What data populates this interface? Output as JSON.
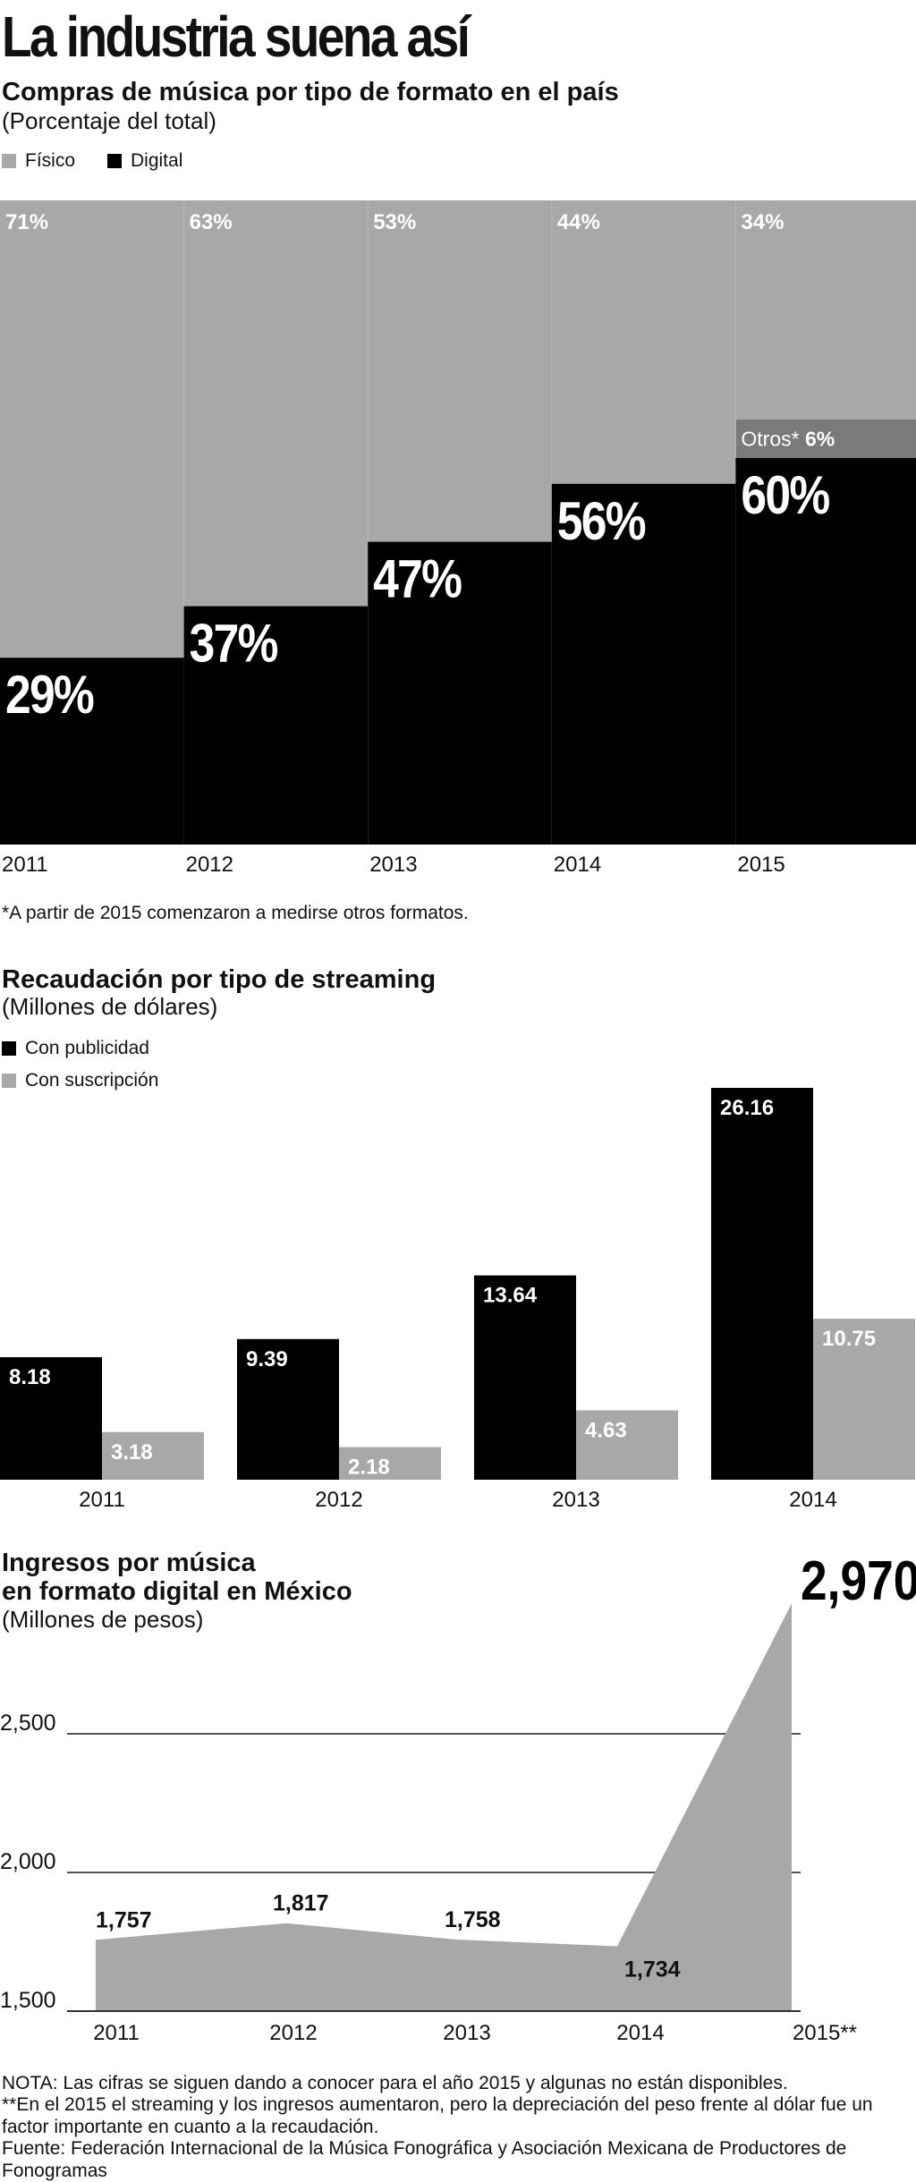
{
  "header": {
    "title": "La industria suena así"
  },
  "chart_data": [
    {
      "type": "bar",
      "stacked": true,
      "title": "Compras de música por tipo de formato en el país",
      "subtitle": "(Porcentaje del total)",
      "unit": "%",
      "categories": [
        "2011",
        "2012",
        "2013",
        "2014",
        "2015"
      ],
      "series": [
        {
          "name": "Físico",
          "color": "#a8a8a8",
          "values": [
            71,
            63,
            53,
            44,
            34
          ],
          "labels": [
            "71%",
            "63%",
            "53%",
            "44%",
            "34%"
          ]
        },
        {
          "name": "Digital",
          "color": "#000000",
          "values": [
            29,
            37,
            47,
            56,
            60
          ],
          "labels": [
            "29%",
            "37%",
            "47%",
            "56%",
            "60%"
          ]
        },
        {
          "name": "Otros*",
          "color": "#7a7a7a",
          "values": [
            0,
            0,
            0,
            0,
            6
          ],
          "labels": [
            "",
            "",
            "",
            "",
            "6%"
          ]
        }
      ],
      "footnote": "*A partir de 2015 comenzaron a medirse otros formatos.",
      "ylim": [
        0,
        100
      ]
    },
    {
      "type": "bar",
      "title": "Recaudación por tipo de streaming",
      "subtitle": "(Millones de dólares)",
      "categories": [
        "2011",
        "2012",
        "2013",
        "2014"
      ],
      "series": [
        {
          "name": "Con publicidad",
          "color": "#000000",
          "values": [
            8.18,
            9.39,
            13.64,
            26.16
          ],
          "labels": [
            "8.18",
            "9.39",
            "13.64",
            "26.16"
          ]
        },
        {
          "name": "Con suscripción",
          "color": "#a8a8a8",
          "values": [
            3.18,
            2.18,
            4.63,
            10.75
          ],
          "labels": [
            "3.18",
            "2.18",
            "4.63",
            "10.75"
          ]
        }
      ],
      "ylim": [
        0,
        26.16
      ]
    },
    {
      "type": "area",
      "title_lines": [
        "Ingresos por música",
        "en formato digital en México"
      ],
      "subtitle": "(Millones de pesos)",
      "x": [
        "2011",
        "2012",
        "2013",
        "2014",
        "2015**"
      ],
      "values": [
        1757,
        1817,
        1758,
        1734,
        2970
      ],
      "labels": [
        "1,757",
        "1,817",
        "1,758",
        "1,734",
        "2,970"
      ],
      "color": "#a8a8a8",
      "yticks": [
        1500,
        2000,
        2500
      ],
      "ytick_labels": [
        "1,500",
        "2,000",
        "2,500"
      ],
      "ylim": [
        1500,
        2970
      ]
    }
  ],
  "notes": [
    "NOTA: Las cifras se siguen dando a conocer para el año 2015 y algunas no están disponibles.",
    "**En el 2015 el streaming y los ingresos aumentaron, pero la depreciación del peso frente al dólar fue un factor importante en cuanto a la recaudación.",
    "Fuente: Federación Internacional de la Música Fonográfica y Asociación Mexicana de Productores de Fonogramas"
  ]
}
